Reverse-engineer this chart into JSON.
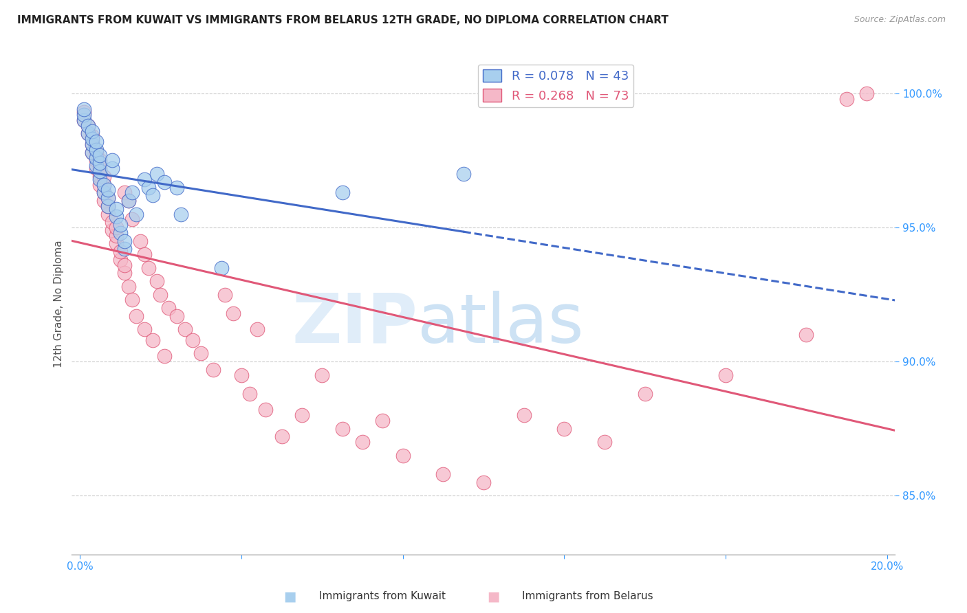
{
  "title": "IMMIGRANTS FROM KUWAIT VS IMMIGRANTS FROM BELARUS 12TH GRADE, NO DIPLOMA CORRELATION CHART",
  "source": "Source: ZipAtlas.com",
  "ylabel": "12th Grade, No Diploma",
  "R_kuwait": 0.078,
  "N_kuwait": 43,
  "R_belarus": 0.268,
  "N_belarus": 73,
  "xlim": [
    -0.002,
    0.202
  ],
  "ylim": [
    0.828,
    1.015
  ],
  "xticks": [
    0.0,
    0.04,
    0.08,
    0.12,
    0.16,
    0.2
  ],
  "xticklabels": [
    "0.0%",
    "",
    "",
    "",
    "",
    "20.0%"
  ],
  "yticks": [
    0.85,
    0.9,
    0.95,
    1.0
  ],
  "yticklabels": [
    "85.0%",
    "90.0%",
    "95.0%",
    "100.0%"
  ],
  "color_kuwait": "#A8CFEE",
  "color_belarus": "#F5B8C8",
  "trend_color_kuwait": "#4169C8",
  "trend_color_belarus": "#E05878",
  "kuwait_x": [
    0.001,
    0.001,
    0.001,
    0.002,
    0.002,
    0.003,
    0.003,
    0.003,
    0.003,
    0.004,
    0.004,
    0.004,
    0.004,
    0.005,
    0.005,
    0.005,
    0.005,
    0.006,
    0.006,
    0.007,
    0.007,
    0.007,
    0.008,
    0.008,
    0.009,
    0.009,
    0.01,
    0.01,
    0.011,
    0.011,
    0.012,
    0.013,
    0.014,
    0.016,
    0.017,
    0.018,
    0.019,
    0.021,
    0.024,
    0.025,
    0.035,
    0.065,
    0.095
  ],
  "kuwait_y": [
    0.99,
    0.992,
    0.994,
    0.985,
    0.988,
    0.978,
    0.981,
    0.983,
    0.986,
    0.973,
    0.976,
    0.979,
    0.982,
    0.968,
    0.971,
    0.974,
    0.977,
    0.963,
    0.966,
    0.958,
    0.961,
    0.964,
    0.972,
    0.975,
    0.954,
    0.957,
    0.948,
    0.951,
    0.942,
    0.945,
    0.96,
    0.963,
    0.955,
    0.968,
    0.965,
    0.962,
    0.97,
    0.967,
    0.965,
    0.955,
    0.935,
    0.963,
    0.97
  ],
  "belarus_x": [
    0.001,
    0.001,
    0.002,
    0.002,
    0.003,
    0.003,
    0.003,
    0.004,
    0.004,
    0.004,
    0.005,
    0.005,
    0.005,
    0.005,
    0.006,
    0.006,
    0.006,
    0.006,
    0.007,
    0.007,
    0.007,
    0.008,
    0.008,
    0.009,
    0.009,
    0.009,
    0.01,
    0.01,
    0.011,
    0.011,
    0.011,
    0.012,
    0.012,
    0.013,
    0.013,
    0.014,
    0.015,
    0.016,
    0.016,
    0.017,
    0.018,
    0.019,
    0.02,
    0.021,
    0.022,
    0.024,
    0.026,
    0.028,
    0.03,
    0.033,
    0.036,
    0.038,
    0.04,
    0.042,
    0.044,
    0.046,
    0.05,
    0.055,
    0.06,
    0.065,
    0.07,
    0.075,
    0.08,
    0.09,
    0.1,
    0.11,
    0.12,
    0.13,
    0.14,
    0.16,
    0.18,
    0.19,
    0.195
  ],
  "belarus_y": [
    0.99,
    0.993,
    0.985,
    0.988,
    0.978,
    0.981,
    0.984,
    0.972,
    0.975,
    0.978,
    0.966,
    0.969,
    0.972,
    0.975,
    0.96,
    0.963,
    0.966,
    0.969,
    0.955,
    0.958,
    0.961,
    0.949,
    0.952,
    0.944,
    0.947,
    0.95,
    0.938,
    0.941,
    0.933,
    0.963,
    0.936,
    0.928,
    0.96,
    0.923,
    0.953,
    0.917,
    0.945,
    0.912,
    0.94,
    0.935,
    0.908,
    0.93,
    0.925,
    0.902,
    0.92,
    0.917,
    0.912,
    0.908,
    0.903,
    0.897,
    0.925,
    0.918,
    0.895,
    0.888,
    0.912,
    0.882,
    0.872,
    0.88,
    0.895,
    0.875,
    0.87,
    0.878,
    0.865,
    0.858,
    0.855,
    0.88,
    0.875,
    0.87,
    0.888,
    0.895,
    0.91,
    0.998,
    1.0
  ],
  "trend_kuwait_x0": 0.0,
  "trend_kuwait_x_solid_end": 0.095,
  "trend_kuwait_x_dash_end": 0.202,
  "trend_belarus_x0": 0.0,
  "trend_belarus_x_end": 0.202
}
